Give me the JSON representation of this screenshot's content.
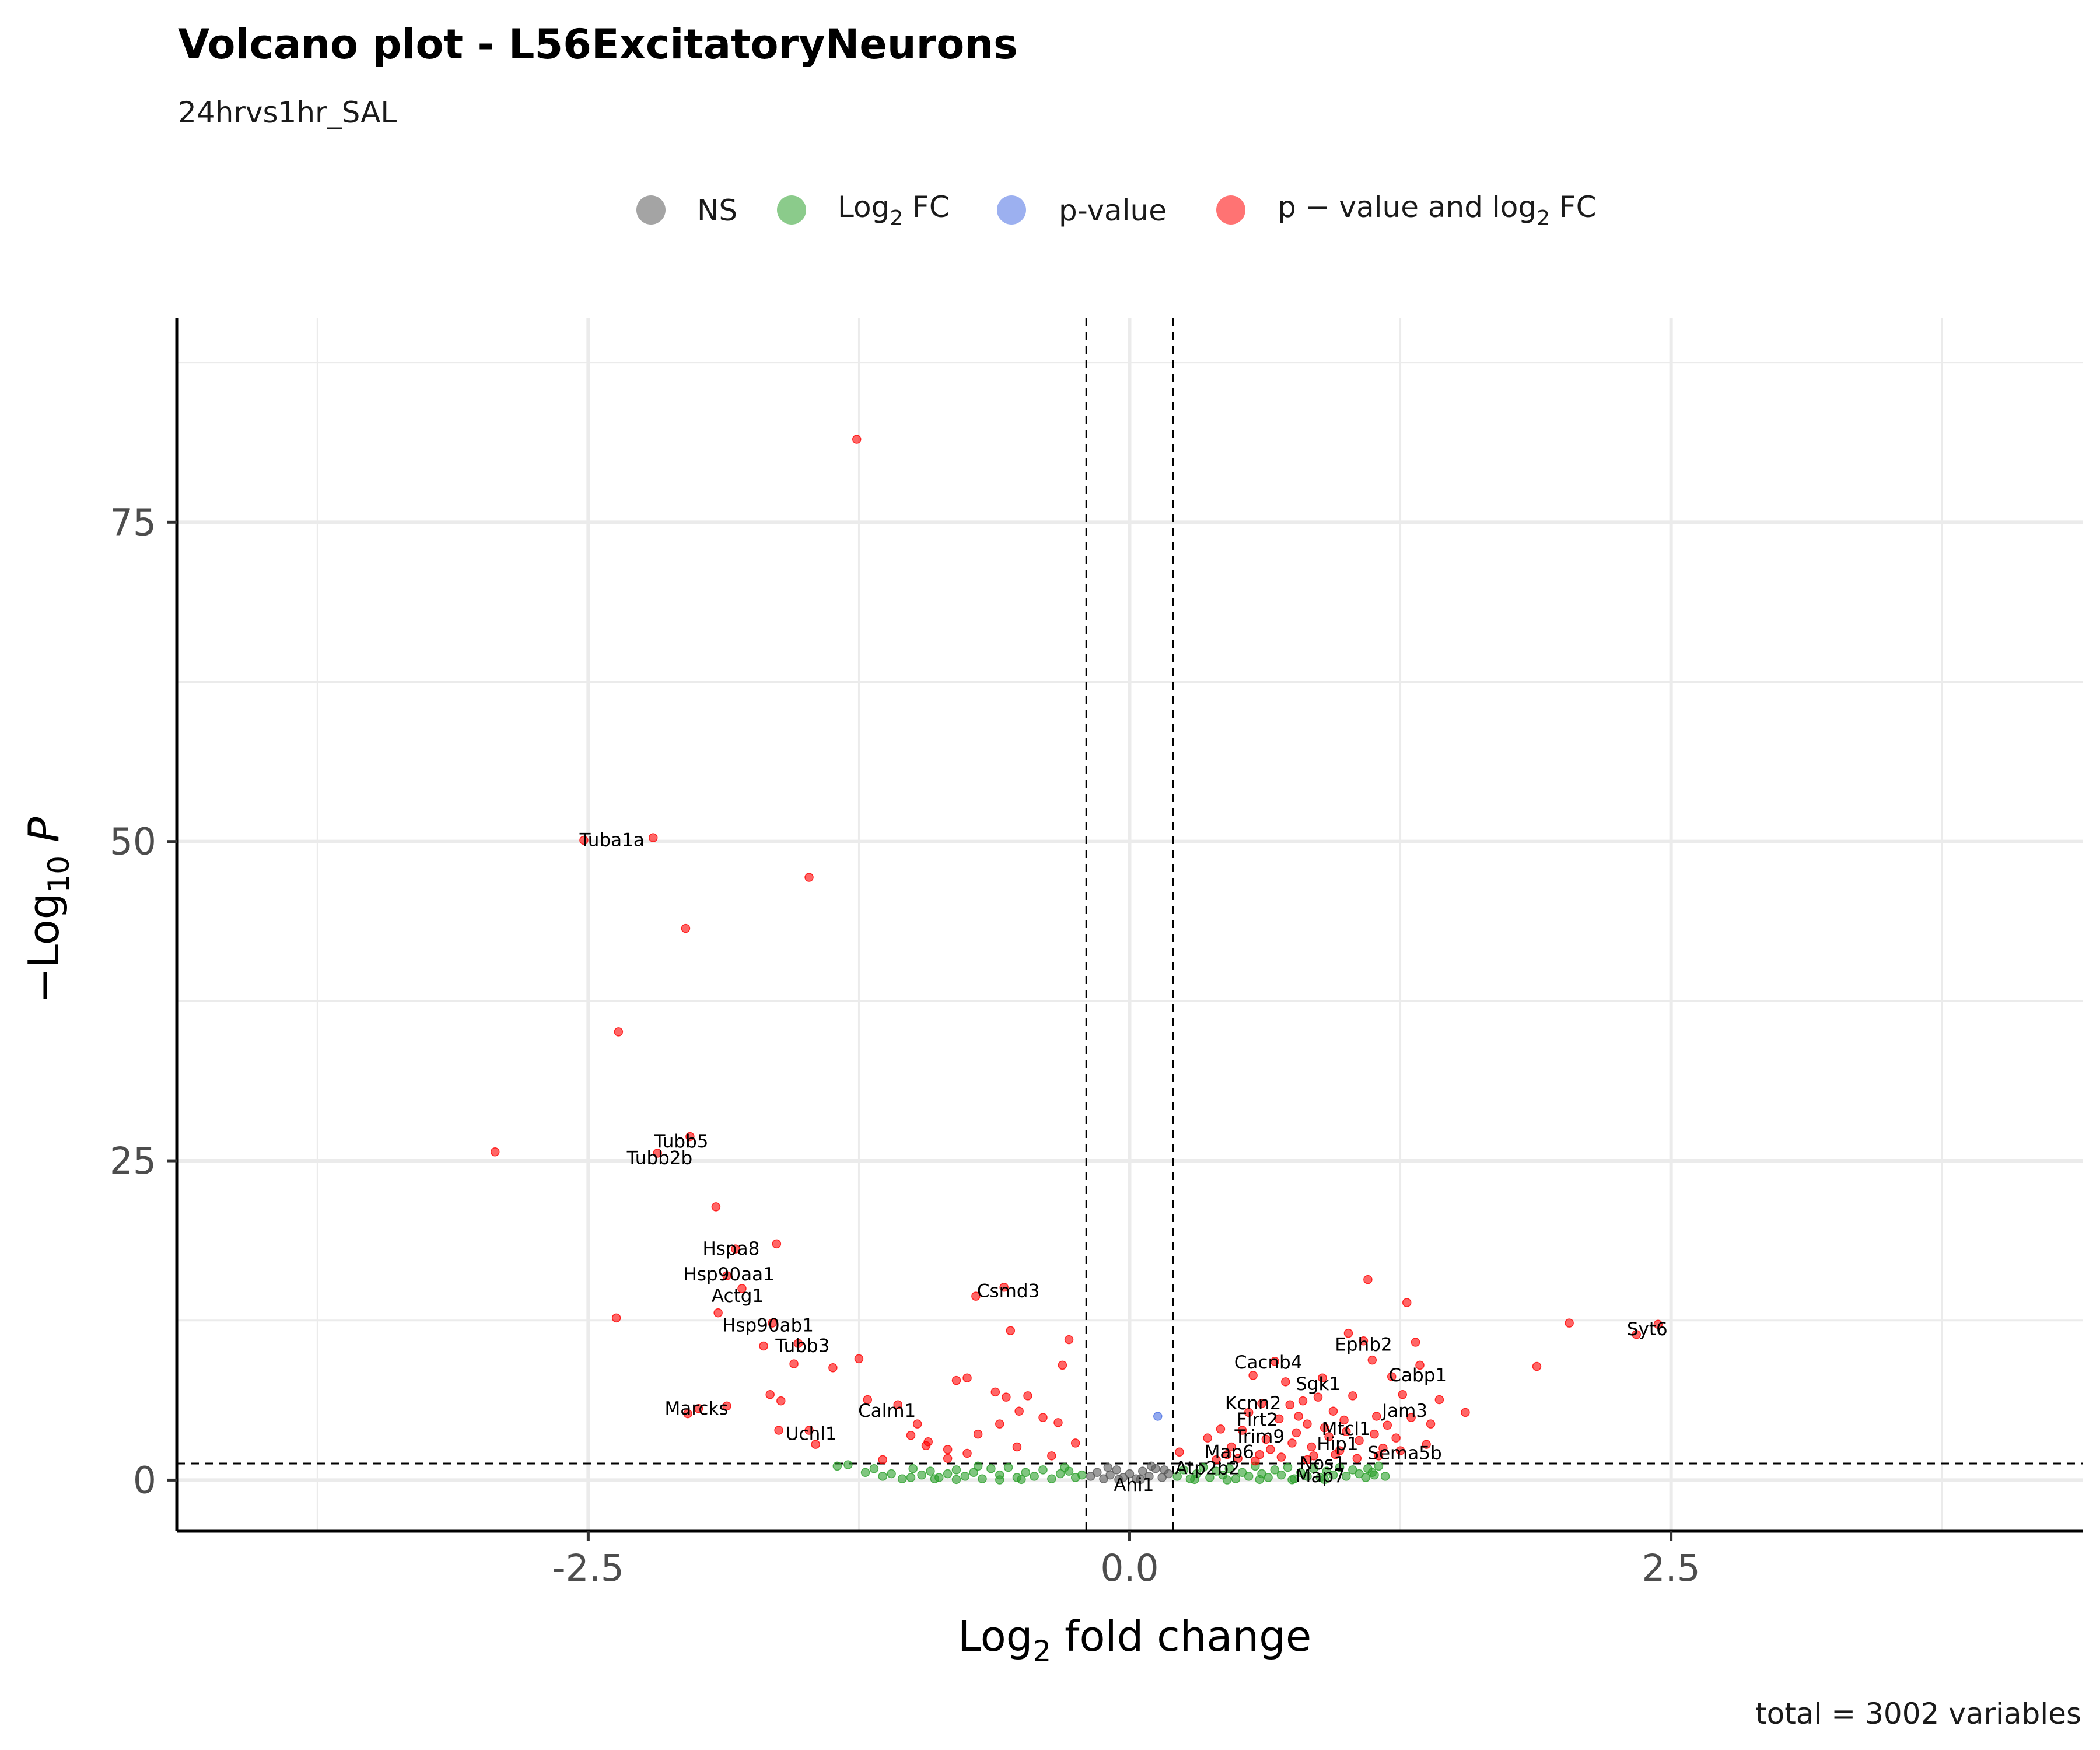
{
  "chart_data": {
    "type": "scatter",
    "title": "Volcano plot - L56ExcitatoryNeurons",
    "subtitle": "24hrvs1hr_SAL",
    "caption": "total = 3002 variables",
    "xlabel": "Log2 fold change",
    "ylabel": "-Log10 P",
    "xlim": [
      -4.4,
      4.4
    ],
    "ylim": [
      -4,
      91
    ],
    "x_ticks": [
      -2.5,
      0.0,
      2.5
    ],
    "x_tick_labels": [
      "-2.5",
      "0.0",
      "2.5"
    ],
    "y_ticks": [
      0,
      25,
      50,
      75
    ],
    "y_tick_labels": [
      "0",
      "25",
      "50",
      "75"
    ],
    "grid": true,
    "legend_position": "top",
    "fc_cutoff": 0.2,
    "p_cutoff_log10": 1.3,
    "legend": [
      {
        "key": "NS",
        "label": "NS",
        "color": "#595959"
      },
      {
        "key": "FC",
        "label": "Log",
        "sub": "2",
        "suffix": " FC",
        "color": "#2ca02c"
      },
      {
        "key": "P",
        "label": "p-value",
        "color": "#4a6fe3"
      },
      {
        "key": "FC_P",
        "label": "p − value and log",
        "sub": "2",
        "suffix": " FC",
        "color": "#ff0000"
      }
    ],
    "series": [
      {
        "name": "FC_P",
        "color": "#ff0000",
        "points": [
          [
            -1.26,
            81.5
          ],
          [
            -2.52,
            50.1
          ],
          [
            -2.2,
            50.3
          ],
          [
            -1.48,
            47.2
          ],
          [
            -2.05,
            43.2
          ],
          [
            -2.36,
            35.1
          ],
          [
            -2.93,
            25.7
          ],
          [
            -2.03,
            26.9
          ],
          [
            -2.18,
            25.6
          ],
          [
            -1.91,
            21.4
          ],
          [
            -1.63,
            18.5
          ],
          [
            -1.82,
            18.1
          ],
          [
            -1.86,
            16.0
          ],
          [
            -1.79,
            15.0
          ],
          [
            -1.9,
            13.1
          ],
          [
            -2.37,
            12.7
          ],
          [
            -1.65,
            12.3
          ],
          [
            -1.69,
            10.5
          ],
          [
            -1.53,
            10.7
          ],
          [
            -1.55,
            9.1
          ],
          [
            -1.37,
            8.8
          ],
          [
            -1.25,
            9.5
          ],
          [
            -1.66,
            6.7
          ],
          [
            -1.61,
            6.2
          ],
          [
            -1.21,
            6.3
          ],
          [
            -2.04,
            5.2
          ],
          [
            -1.99,
            5.6
          ],
          [
            -1.86,
            5.8
          ],
          [
            -1.62,
            3.9
          ],
          [
            -1.48,
            3.9
          ],
          [
            -1.45,
            2.8
          ],
          [
            -1.07,
            5.9
          ],
          [
            -1.01,
            3.5
          ],
          [
            -0.98,
            4.4
          ],
          [
            -0.94,
            2.7
          ],
          [
            -0.84,
            1.7
          ],
          [
            -0.8,
            7.8
          ],
          [
            -0.75,
            8.0
          ],
          [
            -0.71,
            14.4
          ],
          [
            -0.58,
            15.1
          ],
          [
            -0.55,
            11.7
          ],
          [
            -0.62,
            6.9
          ],
          [
            -0.57,
            6.5
          ],
          [
            -0.47,
            6.6
          ],
          [
            -0.28,
            11.0
          ],
          [
            -0.31,
            9.0
          ],
          [
            -0.51,
            5.4
          ],
          [
            -0.4,
            4.9
          ],
          [
            -0.6,
            4.4
          ],
          [
            -0.7,
            3.6
          ],
          [
            -0.75,
            2.1
          ],
          [
            -0.52,
            2.6
          ],
          [
            -0.36,
            1.9
          ],
          [
            -0.25,
            2.9
          ],
          [
            -0.84,
            2.4
          ],
          [
            -0.93,
            3.0
          ],
          [
            -1.14,
            1.6
          ],
          [
            -0.33,
            4.5
          ],
          [
            0.23,
            2.2
          ],
          [
            0.36,
            3.3
          ],
          [
            0.42,
            4.0
          ],
          [
            0.47,
            2.6
          ],
          [
            0.52,
            3.9
          ],
          [
            0.55,
            5.3
          ],
          [
            0.57,
            8.2
          ],
          [
            0.61,
            6.0
          ],
          [
            0.63,
            3.2
          ],
          [
            0.67,
            9.3
          ],
          [
            0.69,
            4.8
          ],
          [
            0.72,
            7.7
          ],
          [
            0.74,
            5.9
          ],
          [
            0.77,
            3.7
          ],
          [
            0.8,
            6.2
          ],
          [
            0.82,
            4.4
          ],
          [
            0.84,
            2.6
          ],
          [
            0.87,
            6.5
          ],
          [
            0.89,
            8.0
          ],
          [
            0.92,
            3.4
          ],
          [
            0.94,
            5.4
          ],
          [
            0.97,
            2.3
          ],
          [
            0.99,
            4.7
          ],
          [
            1.01,
            11.5
          ],
          [
            1.03,
            6.6
          ],
          [
            1.06,
            3.1
          ],
          [
            1.08,
            10.9
          ],
          [
            1.1,
            15.7
          ],
          [
            1.12,
            9.4
          ],
          [
            1.14,
            5.0
          ],
          [
            1.17,
            2.5
          ],
          [
            1.19,
            4.3
          ],
          [
            1.21,
            8.1
          ],
          [
            1.23,
            3.3
          ],
          [
            1.26,
            6.7
          ],
          [
            1.28,
            13.9
          ],
          [
            1.3,
            4.9
          ],
          [
            1.32,
            10.8
          ],
          [
            1.34,
            9.0
          ],
          [
            1.37,
            2.8
          ],
          [
            1.39,
            4.4
          ],
          [
            1.43,
            6.3
          ],
          [
            1.55,
            5.3
          ],
          [
            1.88,
            8.9
          ],
          [
            2.03,
            12.3
          ],
          [
            2.34,
            11.4
          ],
          [
            2.44,
            12.2
          ],
          [
            0.6,
            2.0
          ],
          [
            0.7,
            1.8
          ],
          [
            0.75,
            2.9
          ],
          [
            0.85,
            1.9
          ],
          [
            0.95,
            2.0
          ],
          [
            1.05,
            1.7
          ],
          [
            1.15,
            1.9
          ],
          [
            1.25,
            2.3
          ],
          [
            0.5,
            1.7
          ],
          [
            0.4,
            1.6
          ],
          [
            0.65,
            2.4
          ],
          [
            0.78,
            5.0
          ],
          [
            0.9,
            4.1
          ],
          [
            1.0,
            3.8
          ],
          [
            1.13,
            3.6
          ],
          [
            0.58,
            1.5
          ],
          [
            0.82,
            1.6
          ],
          [
            0.45,
            2.0
          ]
        ]
      },
      {
        "name": "P",
        "color": "#4a6fe3",
        "points": [
          [
            0.13,
            5.0
          ]
        ]
      },
      {
        "name": "FC",
        "color": "#2ca02c",
        "points": [
          [
            -1.35,
            1.1
          ],
          [
            -1.3,
            1.2
          ],
          [
            -1.22,
            0.6
          ],
          [
            -1.18,
            0.9
          ],
          [
            -1.14,
            0.3
          ],
          [
            -1.1,
            0.5
          ],
          [
            -1.05,
            0.1
          ],
          [
            -1.01,
            0.2
          ],
          [
            -0.96,
            0.4
          ],
          [
            -0.92,
            0.7
          ],
          [
            -0.88,
            0.2
          ],
          [
            -0.84,
            0.5
          ],
          [
            -0.8,
            0.8
          ],
          [
            -0.76,
            0.3
          ],
          [
            -0.72,
            0.6
          ],
          [
            -0.68,
            0.1
          ],
          [
            -0.64,
            0.9
          ],
          [
            -0.6,
            0.4
          ],
          [
            -0.56,
            1.0
          ],
          [
            -0.52,
            0.2
          ],
          [
            -0.48,
            0.6
          ],
          [
            -0.44,
            0.3
          ],
          [
            -0.4,
            0.8
          ],
          [
            -0.36,
            0.1
          ],
          [
            -0.32,
            0.5
          ],
          [
            -0.28,
            0.7
          ],
          [
            -0.25,
            0.2
          ],
          [
            -0.22,
            0.4
          ],
          [
            -1.0,
            0.9
          ],
          [
            -0.9,
            0.1
          ],
          [
            -0.7,
            1.1
          ],
          [
            -0.5,
            0.05
          ],
          [
            -0.3,
            1.0
          ],
          [
            -0.6,
            0.02
          ],
          [
            -0.8,
            0.05
          ],
          [
            0.22,
            0.3
          ],
          [
            0.25,
            0.8
          ],
          [
            0.28,
            0.1
          ],
          [
            0.31,
            0.5
          ],
          [
            0.34,
            1.0
          ],
          [
            0.37,
            0.2
          ],
          [
            0.4,
            0.7
          ],
          [
            0.43,
            0.4
          ],
          [
            0.46,
            0.9
          ],
          [
            0.49,
            0.1
          ],
          [
            0.52,
            0.6
          ],
          [
            0.55,
            0.3
          ],
          [
            0.58,
            1.1
          ],
          [
            0.61,
            0.5
          ],
          [
            0.64,
            0.2
          ],
          [
            0.67,
            0.8
          ],
          [
            0.7,
            0.4
          ],
          [
            0.73,
            1.0
          ],
          [
            0.76,
            0.1
          ],
          [
            0.79,
            0.6
          ],
          [
            0.82,
            0.3
          ],
          [
            0.85,
            0.9
          ],
          [
            0.88,
            0.2
          ],
          [
            0.91,
            0.7
          ],
          [
            0.94,
            0.4
          ],
          [
            0.97,
            1.0
          ],
          [
            1.0,
            0.3
          ],
          [
            1.03,
            0.8
          ],
          [
            1.06,
            0.5
          ],
          [
            1.09,
            0.2
          ],
          [
            1.12,
            0.6
          ],
          [
            1.15,
            1.1
          ],
          [
            1.18,
            0.3
          ],
          [
            0.3,
            0.05
          ],
          [
            0.45,
            0.02
          ],
          [
            0.6,
            0.05
          ],
          [
            0.75,
            0.03
          ],
          [
            0.9,
            0.05
          ],
          [
            1.1,
            0.9
          ],
          [
            1.13,
            0.4
          ]
        ]
      },
      {
        "name": "NS",
        "color": "#595959",
        "points": [
          [
            -0.18,
            0.3
          ],
          [
            -0.15,
            0.6
          ],
          [
            -0.12,
            0.1
          ],
          [
            -0.09,
            0.4
          ],
          [
            -0.06,
            0.8
          ],
          [
            -0.03,
            0.2
          ],
          [
            0.0,
            0.5
          ],
          [
            0.03,
            0.1
          ],
          [
            0.06,
            0.7
          ],
          [
            0.09,
            0.3
          ],
          [
            0.12,
            0.9
          ],
          [
            0.15,
            0.2
          ],
          [
            0.18,
            0.5
          ],
          [
            -0.1,
            1.0
          ],
          [
            0.1,
            1.1
          ],
          [
            -0.05,
            0.05
          ],
          [
            0.05,
            0.05
          ],
          [
            0.16,
            0.8
          ]
        ]
      }
    ],
    "labels": [
      {
        "text": "Tuba1a",
        "x": -2.39,
        "y": 50.1
      },
      {
        "text": "Tubb5",
        "x": -2.07,
        "y": 26.5
      },
      {
        "text": "Tubb2b",
        "x": -2.17,
        "y": 25.2
      },
      {
        "text": "Hspa8",
        "x": -1.84,
        "y": 18.1
      },
      {
        "text": "Hsp90aa1",
        "x": -1.85,
        "y": 16.1
      },
      {
        "text": "Actg1",
        "x": -1.81,
        "y": 14.4
      },
      {
        "text": "Hsp90ab1",
        "x": -1.67,
        "y": 12.1
      },
      {
        "text": "Tubb3",
        "x": -1.51,
        "y": 10.5
      },
      {
        "text": "Marcks",
        "x": -2.0,
        "y": 5.6
      },
      {
        "text": "Uchl1",
        "x": -1.47,
        "y": 3.6
      },
      {
        "text": "Calm1",
        "x": -1.12,
        "y": 5.4
      },
      {
        "text": "Csmd3",
        "x": -0.56,
        "y": 14.8
      },
      {
        "text": "Syt6",
        "x": 2.39,
        "y": 11.8
      },
      {
        "text": "Ephb2",
        "x": 1.08,
        "y": 10.6
      },
      {
        "text": "Cabp1",
        "x": 1.33,
        "y": 8.2
      },
      {
        "text": "Cacnb4",
        "x": 0.64,
        "y": 9.2
      },
      {
        "text": "Sgk1",
        "x": 0.87,
        "y": 7.5
      },
      {
        "text": "Kcnn2",
        "x": 0.57,
        "y": 6.0
      },
      {
        "text": "Jam3",
        "x": 1.27,
        "y": 5.4
      },
      {
        "text": "Flrt2",
        "x": 0.59,
        "y": 4.7
      },
      {
        "text": "Mtcl1",
        "x": 1.0,
        "y": 4.0
      },
      {
        "text": "Trim9",
        "x": 0.6,
        "y": 3.4
      },
      {
        "text": "Hip1",
        "x": 0.96,
        "y": 2.8
      },
      {
        "text": "Sema5b",
        "x": 1.27,
        "y": 2.1
      },
      {
        "text": "Map6",
        "x": 0.46,
        "y": 2.2
      },
      {
        "text": "Nos1",
        "x": 0.89,
        "y": 1.3
      },
      {
        "text": "Atp2b2",
        "x": 0.36,
        "y": 0.9
      },
      {
        "text": "Map7",
        "x": 0.88,
        "y": 0.3
      },
      {
        "text": "Ahi1",
        "x": 0.02,
        "y": -0.4
      }
    ]
  }
}
